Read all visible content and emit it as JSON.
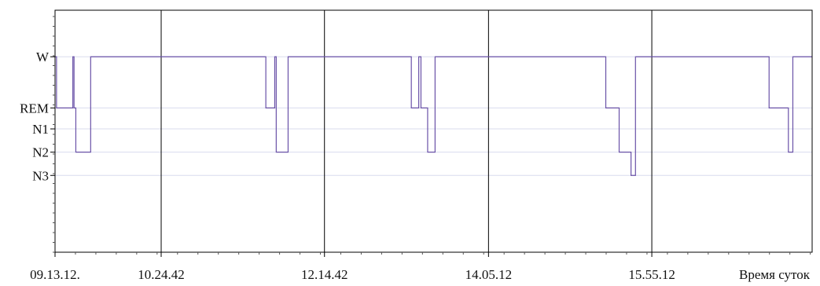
{
  "chart_data": {
    "type": "line",
    "title": "",
    "xlabel": "Время суток",
    "ylabel": "",
    "x_unit": "minutes since 09.13.12",
    "xlim": [
      0,
      402
    ],
    "ylim": [
      -0.2,
      5
    ],
    "y_levels": [
      {
        "label": "W",
        "value": 4
      },
      {
        "label": "REM",
        "value": 2.9
      },
      {
        "label": "N1",
        "value": 2.45
      },
      {
        "label": "N2",
        "value": 1.95
      },
      {
        "label": "N3",
        "value": 1.45
      }
    ],
    "x_ticks": [
      {
        "label": "09.13.12.",
        "value": 0
      },
      {
        "label": "10.24.42",
        "value": 71.5
      },
      {
        "label": "12.14.42",
        "value": 181.5
      },
      {
        "label": "14.05.12",
        "value": 292
      },
      {
        "label": "15.55.12",
        "value": 402
      }
    ],
    "vertical_lines": [
      0,
      71.5,
      181.5,
      292,
      402,
      510
    ],
    "grid": true,
    "colors": {
      "series": "#6a52a8",
      "grid": "#d9dbee",
      "frame": "#000000",
      "axis": "#555555"
    },
    "series": [
      {
        "steps": [
          [
            0,
            4
          ],
          [
            1,
            2.9
          ],
          [
            12,
            4
          ],
          [
            12.8,
            2.9
          ],
          [
            14,
            1.95
          ],
          [
            24,
            4
          ],
          [
            142,
            2.9
          ],
          [
            148,
            4
          ],
          [
            149,
            1.95
          ],
          [
            157,
            4
          ],
          [
            240,
            2.9
          ],
          [
            245,
            4
          ],
          [
            246.5,
            2.9
          ],
          [
            251,
            1.95
          ],
          [
            256,
            4
          ],
          [
            371,
            2.9
          ],
          [
            380,
            1.95
          ],
          [
            388,
            1.45
          ],
          [
            391,
            4
          ],
          [
            481,
            2.9
          ],
          [
            494,
            1.95
          ],
          [
            497,
            4
          ],
          [
            505,
            4
          ]
        ]
      }
    ]
  }
}
